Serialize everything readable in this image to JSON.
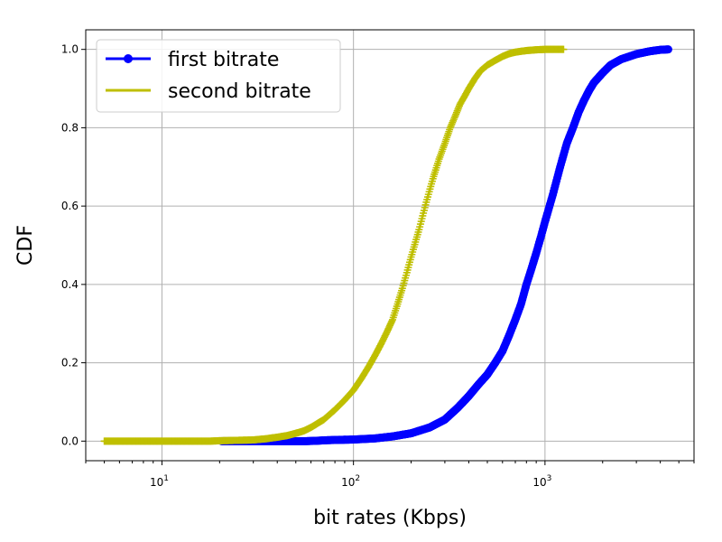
{
  "chart_data": {
    "type": "line",
    "title": "",
    "xlabel": "bit rates (Kbps)",
    "ylabel": "CDF",
    "xscale": "log",
    "xlim": [
      4,
      6000
    ],
    "ylim": [
      -0.05,
      1.05
    ],
    "grid": true,
    "legend_position": "top-left",
    "yticks": [
      0.0,
      0.2,
      0.4,
      0.6,
      0.8,
      1.0
    ],
    "ytick_labels": [
      "0.0",
      "0.2",
      "0.4",
      "0.6",
      "0.8",
      "1.0"
    ],
    "xticks": [
      10,
      100,
      1000
    ],
    "xtick_bases": [
      "10",
      "10",
      "10"
    ],
    "xtick_exps": [
      "1",
      "2",
      "3"
    ],
    "series": [
      {
        "name": "first bitrate",
        "color": "#0000ff",
        "marker": "circle",
        "x": [
          20.5,
          25,
          30,
          35,
          40,
          48,
          57,
          65,
          70,
          80,
          100,
          130,
          160,
          200,
          250,
          300,
          350,
          400,
          450,
          500,
          550,
          600,
          650,
          700,
          750,
          800,
          850,
          900,
          950,
          1000,
          1100,
          1200,
          1300,
          1400,
          1500,
          1600,
          1700,
          1800,
          2000,
          2200,
          2500,
          3000,
          3500,
          4000,
          4400
        ],
        "y": [
          0.0,
          0.0,
          0.0,
          0.0,
          0.0,
          0.0,
          0.0,
          0.001,
          0.002,
          0.003,
          0.004,
          0.007,
          0.012,
          0.02,
          0.035,
          0.055,
          0.085,
          0.115,
          0.145,
          0.17,
          0.2,
          0.23,
          0.27,
          0.31,
          0.35,
          0.4,
          0.44,
          0.48,
          0.52,
          0.56,
          0.63,
          0.7,
          0.76,
          0.8,
          0.84,
          0.87,
          0.895,
          0.915,
          0.94,
          0.96,
          0.975,
          0.988,
          0.995,
          0.999,
          1.0
        ]
      },
      {
        "name": "second bitrate",
        "color": "#bfbf00",
        "marker": "plus",
        "x": [
          5,
          8,
          10,
          12,
          15,
          18,
          20,
          25,
          30,
          35,
          40,
          45,
          50,
          55,
          60,
          70,
          80,
          90,
          100,
          110,
          120,
          130,
          140,
          150,
          160,
          170,
          180,
          190,
          200,
          220,
          240,
          260,
          280,
          300,
          320,
          340,
          360,
          380,
          400,
          430,
          460,
          500,
          550,
          600,
          650,
          700,
          800,
          900,
          1000,
          1100,
          1250
        ],
        "y": [
          0.0,
          0.0,
          0.0,
          0.0,
          0.0,
          0.0,
          0.001,
          0.002,
          0.003,
          0.006,
          0.01,
          0.014,
          0.02,
          0.026,
          0.035,
          0.055,
          0.08,
          0.105,
          0.13,
          0.16,
          0.19,
          0.22,
          0.25,
          0.28,
          0.31,
          0.35,
          0.39,
          0.43,
          0.47,
          0.54,
          0.61,
          0.67,
          0.72,
          0.76,
          0.8,
          0.83,
          0.86,
          0.88,
          0.9,
          0.925,
          0.945,
          0.96,
          0.972,
          0.982,
          0.989,
          0.993,
          0.997,
          0.999,
          1.0,
          1.0,
          1.0
        ]
      }
    ]
  }
}
